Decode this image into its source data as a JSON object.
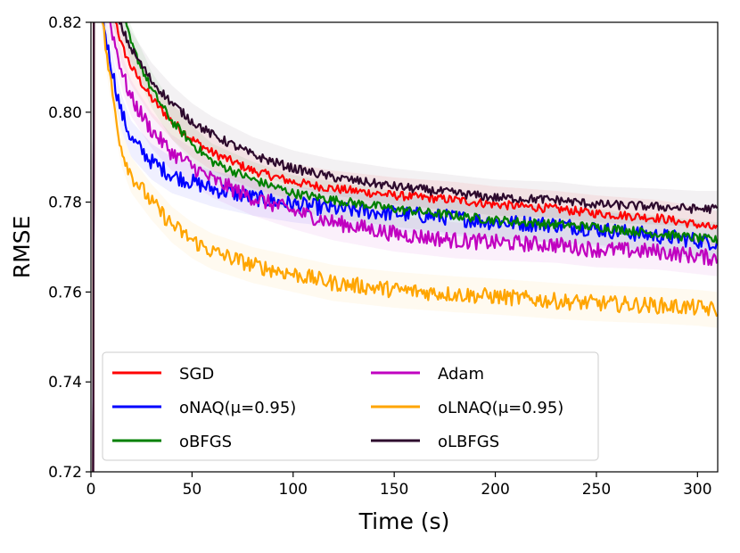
{
  "chart_data": {
    "type": "line",
    "title": "",
    "xlabel": "Time (s)",
    "ylabel": "RMSE",
    "xlim": [
      0,
      310
    ],
    "ylim": [
      0.72,
      0.82
    ],
    "xticks": [
      0,
      50,
      100,
      150,
      200,
      250,
      300
    ],
    "xtick_labels": [
      "0",
      "50",
      "100",
      "150",
      "200",
      "250",
      "300"
    ],
    "yticks": [
      0.72,
      0.74,
      0.76,
      0.78,
      0.8,
      0.82
    ],
    "ytick_labels": [
      "0.72",
      "0.74",
      "0.76",
      "0.78",
      "0.80",
      "0.82"
    ],
    "grid": false,
    "legend_position": "lower-left",
    "legend_columns": 2,
    "series": [
      {
        "name": "SGD",
        "color": "#ff0000",
        "x": [
          3,
          10,
          15,
          20,
          30,
          40,
          50,
          60,
          80,
          100,
          120,
          150,
          180,
          200,
          230,
          250,
          280,
          300,
          310
        ],
        "y": [
          0.83,
          0.825,
          0.815,
          0.81,
          0.803,
          0.798,
          0.794,
          0.791,
          0.787,
          0.7845,
          0.783,
          0.7815,
          0.7805,
          0.7795,
          0.7785,
          0.7775,
          0.7765,
          0.775,
          0.774
        ]
      },
      {
        "name": "oNAQ(μ=0.95)",
        "color": "#0000ff",
        "x": [
          3,
          8,
          12,
          15,
          20,
          30,
          40,
          50,
          60,
          80,
          100,
          120,
          150,
          180,
          200,
          230,
          250,
          280,
          300,
          310
        ],
        "y": [
          0.83,
          0.815,
          0.806,
          0.8,
          0.794,
          0.789,
          0.786,
          0.7845,
          0.783,
          0.781,
          0.7795,
          0.7785,
          0.7775,
          0.7765,
          0.7755,
          0.775,
          0.774,
          0.7725,
          0.7715,
          0.771
        ]
      },
      {
        "name": "oBFGS",
        "color": "#008000",
        "x": [
          3,
          15,
          20,
          30,
          40,
          50,
          60,
          80,
          100,
          120,
          150,
          180,
          200,
          230,
          250,
          280,
          300,
          310
        ],
        "y": [
          0.83,
          0.823,
          0.815,
          0.805,
          0.798,
          0.793,
          0.789,
          0.785,
          0.782,
          0.7805,
          0.7785,
          0.777,
          0.776,
          0.775,
          0.7745,
          0.773,
          0.772,
          0.7715
        ]
      },
      {
        "name": "Adam",
        "color": "#c000c0",
        "x": [
          3,
          8,
          12,
          16,
          20,
          30,
          40,
          50,
          60,
          80,
          100,
          120,
          150,
          180,
          200,
          230,
          250,
          280,
          300,
          310
        ],
        "y": [
          0.83,
          0.823,
          0.815,
          0.808,
          0.803,
          0.796,
          0.791,
          0.788,
          0.785,
          0.781,
          0.778,
          0.7755,
          0.773,
          0.7715,
          0.771,
          0.7705,
          0.7695,
          0.769,
          0.768,
          0.7675
        ]
      },
      {
        "name": "oLNAQ(μ=0.95)",
        "color": "#ffa500",
        "x": [
          3,
          8,
          12,
          15,
          20,
          30,
          40,
          50,
          60,
          80,
          100,
          120,
          150,
          180,
          200,
          230,
          250,
          280,
          300,
          310
        ],
        "y": [
          0.83,
          0.812,
          0.8,
          0.792,
          0.786,
          0.78,
          0.775,
          0.7715,
          0.769,
          0.766,
          0.764,
          0.762,
          0.7605,
          0.7595,
          0.759,
          0.758,
          0.7575,
          0.757,
          0.7565,
          0.756
        ]
      },
      {
        "name": "oLBFGS",
        "color": "#2d0a2d",
        "x": [
          3,
          10,
          15,
          20,
          30,
          40,
          50,
          60,
          80,
          100,
          120,
          150,
          180,
          200,
          230,
          250,
          280,
          300,
          310
        ],
        "y": [
          0.83,
          0.824,
          0.819,
          0.814,
          0.807,
          0.802,
          0.798,
          0.795,
          0.7905,
          0.7875,
          0.7855,
          0.7835,
          0.782,
          0.781,
          0.7805,
          0.7795,
          0.779,
          0.7785,
          0.7785
        ]
      }
    ]
  }
}
